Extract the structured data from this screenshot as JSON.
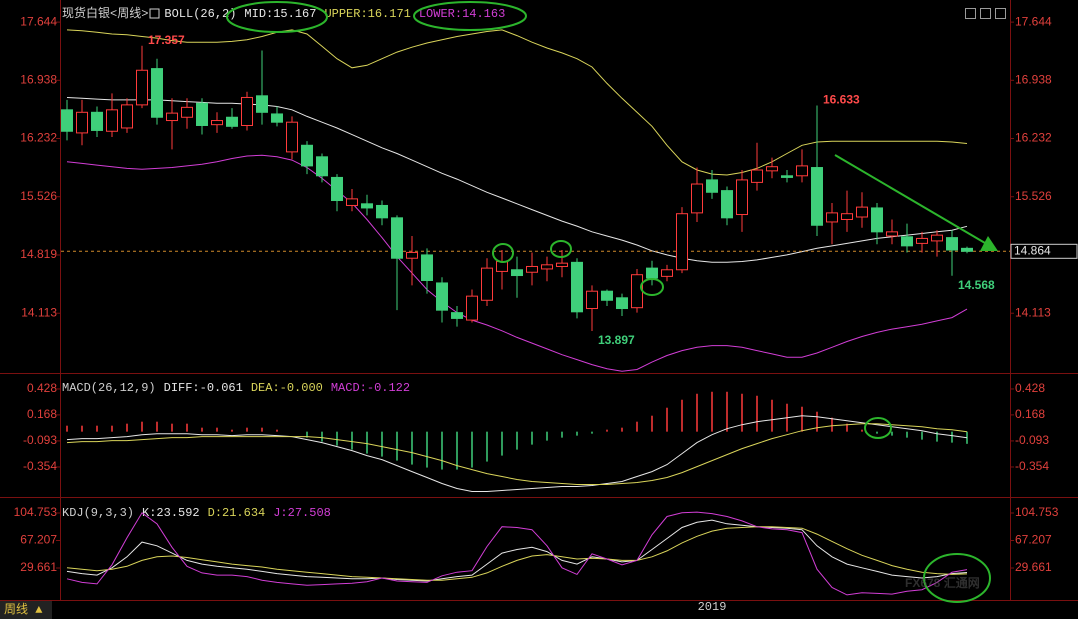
{
  "chart_data": [
    {
      "type": "candlestick",
      "title": "现货白银<周线>",
      "indicator": "BOLL(26,2)",
      "categories": [
        null,
        null,
        null,
        null,
        null,
        null,
        null,
        null,
        null,
        null,
        null,
        null,
        null,
        null,
        null,
        null,
        null,
        null,
        null,
        null,
        null,
        null,
        null,
        null,
        null,
        null,
        null,
        null,
        null,
        null,
        null,
        null,
        null,
        null,
        null,
        null,
        null,
        null,
        null,
        null,
        null,
        null,
        null,
        "2019",
        null,
        null,
        null,
        null,
        null,
        null,
        null,
        null,
        null,
        null,
        null,
        null,
        null,
        null,
        null,
        null,
        null
      ],
      "open": [
        16.58,
        16.3,
        16.55,
        16.32,
        16.36,
        16.64,
        17.08,
        16.45,
        16.49,
        16.66,
        16.4,
        16.49,
        16.39,
        16.75,
        16.53,
        16.07,
        16.15,
        16.01,
        15.76,
        15.42,
        15.44,
        15.42,
        15.27,
        14.78,
        14.82,
        14.48,
        14.12,
        14.03,
        14.27,
        14.62,
        14.64,
        14.61,
        14.65,
        14.68,
        14.73,
        14.17,
        14.38,
        14.3,
        14.18,
        14.66,
        14.56,
        14.64,
        15.33,
        15.73,
        15.6,
        15.31,
        15.7,
        15.84,
        15.78,
        15.78,
        15.88,
        15.22,
        15.25,
        15.28,
        15.39,
        15.05,
        15.04,
        14.96,
        14.99,
        15.03,
        14.9
      ],
      "high": [
        16.7,
        16.7,
        16.62,
        16.78,
        16.72,
        17.357,
        17.2,
        16.72,
        16.72,
        16.72,
        16.55,
        16.6,
        16.8,
        17.3,
        16.62,
        16.5,
        16.2,
        16.05,
        15.8,
        15.62,
        15.55,
        15.48,
        15.3,
        15.05,
        14.9,
        14.55,
        14.2,
        14.4,
        14.78,
        14.88,
        14.8,
        14.85,
        14.8,
        14.88,
        14.78,
        14.45,
        14.4,
        14.35,
        14.65,
        14.75,
        14.7,
        15.4,
        15.88,
        15.85,
        15.65,
        15.85,
        16.18,
        16.0,
        15.85,
        16.1,
        16.633,
        15.45,
        15.6,
        15.58,
        15.45,
        15.25,
        15.2,
        15.1,
        15.12,
        15.12,
        14.92
      ],
      "low": [
        16.21,
        16.15,
        16.25,
        16.25,
        16.3,
        16.6,
        16.4,
        16.1,
        16.35,
        16.28,
        16.3,
        16.35,
        16.33,
        16.4,
        16.38,
        15.98,
        15.8,
        15.7,
        15.35,
        15.35,
        15.3,
        15.18,
        14.15,
        14.45,
        14.35,
        14.0,
        13.95,
        14.0,
        14.2,
        14.4,
        14.3,
        14.45,
        14.5,
        14.55,
        14.05,
        13.897,
        14.2,
        14.08,
        14.12,
        14.45,
        14.5,
        14.6,
        15.22,
        15.5,
        15.18,
        15.1,
        15.6,
        15.75,
        15.7,
        15.7,
        15.05,
        14.95,
        15.1,
        15.15,
        14.95,
        14.95,
        14.85,
        14.85,
        14.8,
        14.568,
        14.84
      ],
      "close": [
        16.32,
        16.55,
        16.33,
        16.58,
        16.64,
        17.06,
        16.49,
        16.54,
        16.61,
        16.39,
        16.45,
        16.38,
        16.73,
        16.55,
        16.43,
        16.43,
        15.9,
        15.78,
        15.48,
        15.5,
        15.39,
        15.27,
        14.78,
        14.85,
        14.51,
        14.15,
        14.05,
        14.32,
        14.66,
        14.74,
        14.57,
        14.68,
        14.7,
        14.72,
        14.13,
        14.38,
        14.27,
        14.17,
        14.58,
        14.54,
        14.64,
        15.32,
        15.68,
        15.58,
        15.27,
        15.73,
        15.85,
        15.89,
        15.76,
        15.9,
        15.18,
        15.33,
        15.32,
        15.4,
        15.1,
        15.1,
        14.93,
        15.02,
        15.06,
        14.88,
        14.864
      ],
      "up_color": "#ff3b3b",
      "down_color": "#3fcf7a",
      "series": [
        {
          "name": "MID:15.167",
          "color": "#e6e6e6",
          "values": [
            16.73,
            16.72,
            16.71,
            16.7,
            16.7,
            16.7,
            16.7,
            16.69,
            16.68,
            16.67,
            16.66,
            16.66,
            16.65,
            16.64,
            16.62,
            16.58,
            16.5,
            16.43,
            16.36,
            16.28,
            16.2,
            16.12,
            16.05,
            15.97,
            15.89,
            15.81,
            15.74,
            15.66,
            15.58,
            15.51,
            15.44,
            15.37,
            15.3,
            15.23,
            15.17,
            15.1,
            15.05,
            15.0,
            14.94,
            14.87,
            14.82,
            14.78,
            14.75,
            14.73,
            14.73,
            14.74,
            14.76,
            14.79,
            14.82,
            14.86,
            14.9,
            14.93,
            14.96,
            14.99,
            15.02,
            15.04,
            15.06,
            15.08,
            15.1,
            15.12,
            15.167
          ]
        },
        {
          "name": "UPPER:16.171",
          "color": "#d9d45a",
          "values": [
            17.55,
            17.54,
            17.52,
            17.5,
            17.49,
            17.47,
            17.45,
            17.42,
            17.4,
            17.4,
            17.4,
            17.41,
            17.43,
            17.47,
            17.52,
            17.55,
            17.5,
            17.35,
            17.2,
            17.09,
            17.12,
            17.2,
            17.28,
            17.34,
            17.39,
            17.43,
            17.47,
            17.5,
            17.53,
            17.55,
            17.48,
            17.4,
            17.33,
            17.27,
            17.2,
            17.1,
            16.9,
            16.72,
            16.55,
            16.38,
            16.15,
            15.95,
            15.85,
            15.8,
            15.79,
            15.82,
            15.87,
            15.95,
            16.05,
            16.15,
            16.19,
            16.2,
            16.2,
            16.2,
            16.2,
            16.2,
            16.2,
            16.2,
            16.2,
            16.19,
            16.171
          ]
        },
        {
          "name": "LOWER:14.163",
          "color": "#d23ed6",
          "values": [
            15.95,
            15.93,
            15.91,
            15.89,
            15.87,
            15.86,
            15.87,
            15.88,
            15.9,
            15.92,
            15.95,
            15.99,
            16.02,
            16.03,
            16.01,
            15.97,
            15.88,
            15.75,
            15.6,
            15.45,
            15.25,
            15.03,
            14.8,
            14.6,
            14.4,
            14.25,
            14.12,
            14.03,
            13.97,
            13.9,
            13.82,
            13.75,
            13.68,
            13.61,
            13.55,
            13.49,
            13.44,
            13.41,
            13.43,
            13.52,
            13.6,
            13.66,
            13.7,
            13.72,
            13.72,
            13.7,
            13.66,
            13.62,
            13.58,
            13.58,
            13.63,
            13.7,
            13.77,
            13.83,
            13.88,
            13.92,
            13.95,
            13.98,
            14.02,
            14.06,
            14.163
          ]
        }
      ],
      "annotations": [
        17.357,
        16.633,
        13.897,
        14.568
      ],
      "last_price": 14.864,
      "ylim": [
        13.4,
        17.9
      ],
      "yticks": [
        17.644,
        16.938,
        16.232,
        15.526,
        14.819,
        14.113
      ]
    },
    {
      "type": "macd",
      "title": "MACD(26,12,9)",
      "up_color": "#ff3b3b",
      "down_color": "#3fcf7a",
      "series": [
        {
          "name": "DIFF:-0.061",
          "color": "#e6e6e6",
          "style": "line",
          "values": [
            -0.08,
            -0.07,
            -0.07,
            -0.06,
            -0.05,
            -0.03,
            -0.02,
            -0.02,
            -0.02,
            -0.03,
            -0.03,
            -0.04,
            -0.03,
            -0.03,
            -0.04,
            -0.05,
            -0.08,
            -0.11,
            -0.15,
            -0.19,
            -0.24,
            -0.28,
            -0.34,
            -0.4,
            -0.46,
            -0.52,
            -0.57,
            -0.6,
            -0.6,
            -0.59,
            -0.58,
            -0.57,
            -0.56,
            -0.55,
            -0.55,
            -0.54,
            -0.52,
            -0.5,
            -0.45,
            -0.4,
            -0.33,
            -0.22,
            -0.11,
            -0.03,
            0.03,
            0.07,
            0.1,
            0.12,
            0.14,
            0.16,
            0.15,
            0.13,
            0.11,
            0.09,
            0.07,
            0.05,
            0.03,
            0.01,
            -0.02,
            -0.04,
            -0.061
          ]
        },
        {
          "name": "DEA:-0.000",
          "color": "#d9d45a",
          "style": "line",
          "values": [
            -0.11,
            -0.1,
            -0.1,
            -0.09,
            -0.09,
            -0.08,
            -0.07,
            -0.06,
            -0.06,
            -0.05,
            -0.05,
            -0.05,
            -0.05,
            -0.05,
            -0.05,
            -0.05,
            -0.05,
            -0.06,
            -0.08,
            -0.1,
            -0.12,
            -0.15,
            -0.18,
            -0.21,
            -0.25,
            -0.29,
            -0.34,
            -0.38,
            -0.42,
            -0.45,
            -0.48,
            -0.5,
            -0.51,
            -0.52,
            -0.53,
            -0.53,
            -0.53,
            -0.52,
            -0.51,
            -0.49,
            -0.46,
            -0.41,
            -0.35,
            -0.29,
            -0.23,
            -0.17,
            -0.12,
            -0.07,
            -0.03,
            0.01,
            0.04,
            0.06,
            0.07,
            0.08,
            0.08,
            0.07,
            0.06,
            0.05,
            0.03,
            0.02,
            0
          ]
        },
        {
          "name": "MACD:-0.122",
          "color": "#d23ed6",
          "style": "bar",
          "values": [
            0.06,
            0.06,
            0.06,
            0.06,
            0.08,
            0.1,
            0.1,
            0.08,
            0.08,
            0.04,
            0.04,
            0.02,
            0.04,
            0.04,
            0.02,
            0.0,
            -0.06,
            -0.1,
            -0.14,
            -0.18,
            -0.22,
            -0.25,
            -0.29,
            -0.33,
            -0.36,
            -0.38,
            -0.38,
            -0.36,
            -0.3,
            -0.24,
            -0.18,
            -0.13,
            -0.09,
            -0.06,
            -0.04,
            -0.02,
            0.02,
            0.04,
            0.1,
            0.16,
            0.24,
            0.32,
            0.38,
            0.4,
            0.4,
            0.38,
            0.36,
            0.32,
            0.28,
            0.25,
            0.2,
            0.14,
            0.08,
            0.02,
            -0.02,
            -0.04,
            -0.06,
            -0.08,
            -0.1,
            -0.11,
            -0.122
          ]
        }
      ],
      "ylim": [
        -0.635,
        0.568
      ],
      "yticks": [
        0.428,
        0.168,
        -0.093,
        -0.354
      ]
    },
    {
      "type": "kdj",
      "title": "KDJ(9,3,3)",
      "series": [
        {
          "name": "K:23.592",
          "color": "#e6e6e6",
          "style": "line",
          "values": [
            25,
            22,
            20,
            30,
            45,
            65,
            60,
            50,
            40,
            35,
            32,
            30,
            28,
            25,
            22,
            20,
            18,
            17,
            16,
            15,
            15,
            16,
            14,
            13,
            12,
            15,
            18,
            20,
            35,
            50,
            55,
            58,
            52,
            40,
            35,
            45,
            42,
            38,
            40,
            55,
            70,
            85,
            92,
            95,
            90,
            88,
            86,
            85,
            84,
            82,
            60,
            45,
            35,
            30,
            25,
            20,
            18,
            16,
            18,
            22,
            23.592
          ]
        },
        {
          "name": "D:21.634",
          "color": "#d9d45a",
          "style": "line",
          "values": [
            30,
            28,
            26,
            28,
            32,
            40,
            45,
            46,
            44,
            41,
            38,
            35,
            33,
            31,
            28,
            26,
            24,
            22,
            20,
            18,
            17,
            16,
            15,
            14,
            13,
            13,
            15,
            17,
            23,
            32,
            40,
            46,
            48,
            45,
            42,
            43,
            42,
            40,
            40,
            45,
            53,
            64,
            73,
            80,
            84,
            85,
            86,
            86,
            85,
            84,
            76,
            66,
            56,
            47,
            40,
            33,
            28,
            24,
            22,
            21,
            21.634
          ]
        },
        {
          "name": "J:27.508",
          "color": "#d23ed6",
          "style": "line",
          "values": [
            15,
            10,
            8,
            34,
            71,
            105,
            90,
            58,
            32,
            23,
            20,
            20,
            18,
            13,
            10,
            8,
            6,
            7,
            8,
            9,
            11,
            16,
            12,
            11,
            10,
            19,
            24,
            26,
            59,
            86,
            85,
            82,
            60,
            30,
            21,
            49,
            42,
            34,
            40,
            75,
            100,
            105,
            106,
            104,
            100,
            94,
            86,
            83,
            82,
            78,
            28,
            3,
            -7,
            -4,
            -5,
            -6,
            -2,
            0,
            10,
            24,
            27.508
          ]
        }
      ],
      "ylim": [
        -14,
        122.5
      ],
      "yticks": [
        104.753,
        67.207,
        29.661
      ]
    }
  ],
  "ui": {
    "tab": "周线 ▲",
    "watermark": "FX678 汇通网"
  }
}
